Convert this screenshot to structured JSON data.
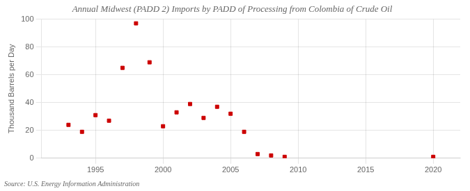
{
  "chart_data": {
    "type": "scatter",
    "title": "Annual Midwest (PADD 2) Imports by PADD of Processing from Colombia of Crude Oil",
    "ylabel": "Thousand Barrels per Day",
    "annotation": "Source: U.S. Energy Information Administration",
    "x": [
      1993,
      1994,
      1995,
      1996,
      1997,
      1998,
      1999,
      2000,
      2001,
      2002,
      2003,
      2004,
      2005,
      2006,
      2007,
      2008,
      2009,
      2020
    ],
    "values": [
      24,
      19,
      31,
      27,
      65,
      97,
      69,
      23,
      33,
      39,
      29,
      37,
      32,
      19,
      3,
      2,
      1,
      1
    ],
    "color": "#cc0000",
    "marker": "square",
    "xlim": [
      1991,
      2022
    ],
    "xticks": [
      1995,
      2000,
      2005,
      2010,
      2015,
      2020
    ],
    "ylim": [
      0,
      100
    ],
    "yticks": [
      0,
      20,
      40,
      60,
      80,
      100
    ],
    "grid": true
  }
}
